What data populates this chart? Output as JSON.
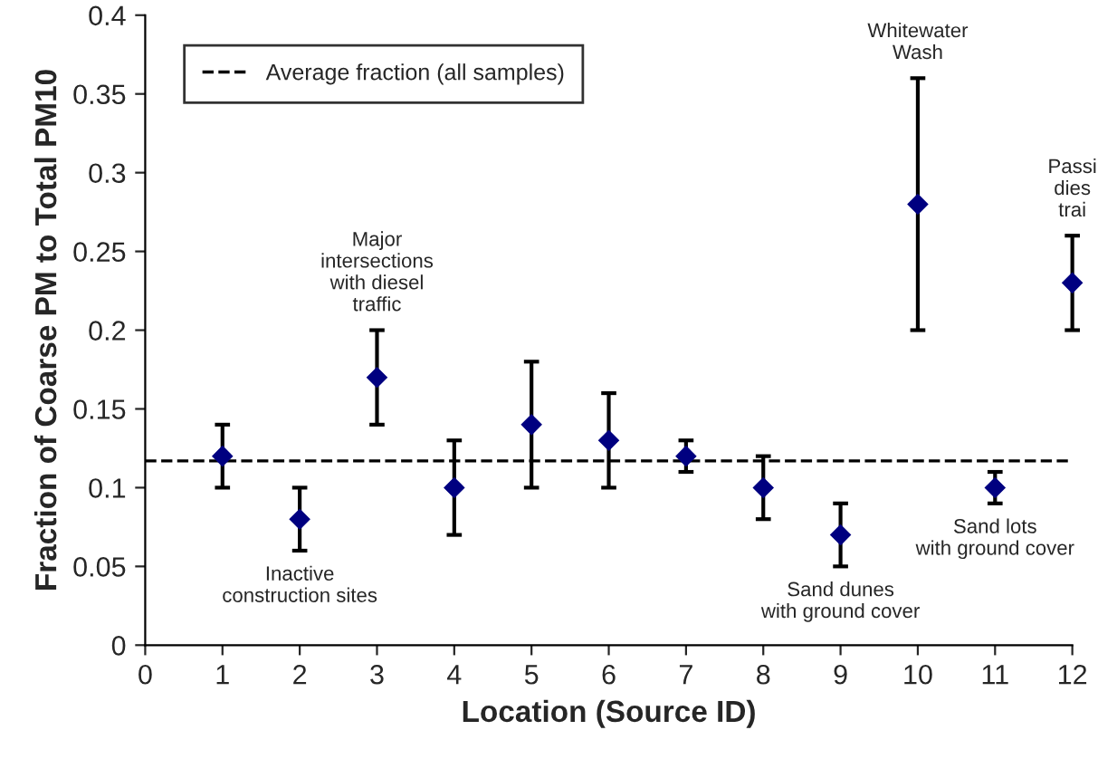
{
  "chart_data": {
    "type": "scatter",
    "xlabel": "Location (Source ID)",
    "ylabel": "Fraction of Coarse PM to Total PM10",
    "x": [
      1,
      2,
      3,
      4,
      5,
      6,
      7,
      8,
      9,
      10,
      11,
      12
    ],
    "series": [
      {
        "color": "#000080",
        "values": [
          0.12,
          0.08,
          0.17,
          0.1,
          0.14,
          0.13,
          0.12,
          0.1,
          0.07,
          0.28,
          0.1,
          0.23
        ],
        "errors": [
          0.02,
          0.02,
          0.03,
          0.03,
          0.04,
          0.03,
          0.01,
          0.02,
          0.02,
          0.08,
          0.01,
          0.03
        ]
      }
    ],
    "marker": "diamond",
    "xlim": [
      0,
      12
    ],
    "xticks": [
      0,
      1,
      2,
      3,
      4,
      5,
      6,
      7,
      8,
      9,
      10,
      11,
      12
    ],
    "ylim": [
      0,
      0.4
    ],
    "yticks": [
      0,
      {
        "value": 0.05,
        "label": "0.05"
      },
      {
        "value": 0.1,
        "label": "0.1"
      },
      {
        "value": 0.15,
        "label": "0.15"
      },
      {
        "value": 0.2,
        "label": "0.2"
      },
      {
        "value": 0.25,
        "label": "0.25"
      },
      {
        "value": 0.3,
        "label": "0.3"
      },
      {
        "value": 0.35,
        "label": "0.35"
      },
      {
        "value": 0.4,
        "label": "0.4"
      }
    ],
    "ref_lines": [
      {
        "axis": "y",
        "value": 0.117,
        "label": "Average fraction (all samples)",
        "color": "#000000",
        "line_style": "dashed"
      }
    ],
    "annotations": [
      {
        "text": "Inactive\nconstruction sites",
        "x": 2,
        "y": 0.06
      },
      {
        "text": "Major\nintersections\nwith diesel\ntraffic",
        "x": 3,
        "y": 0.2
      },
      {
        "text": "Sand dunes\nwith ground cover",
        "x": 9,
        "y": 0.05
      },
      {
        "text": "Whitewater\nWash",
        "x": 10,
        "y": 0.36
      },
      {
        "text": "Sand lots\nwith ground cover",
        "x": 11,
        "y": 0.09
      },
      {
        "text": "Passi\ndies\ntrai",
        "x": 12,
        "y": 0.26
      }
    ],
    "grid": false,
    "legend": "top left"
  }
}
